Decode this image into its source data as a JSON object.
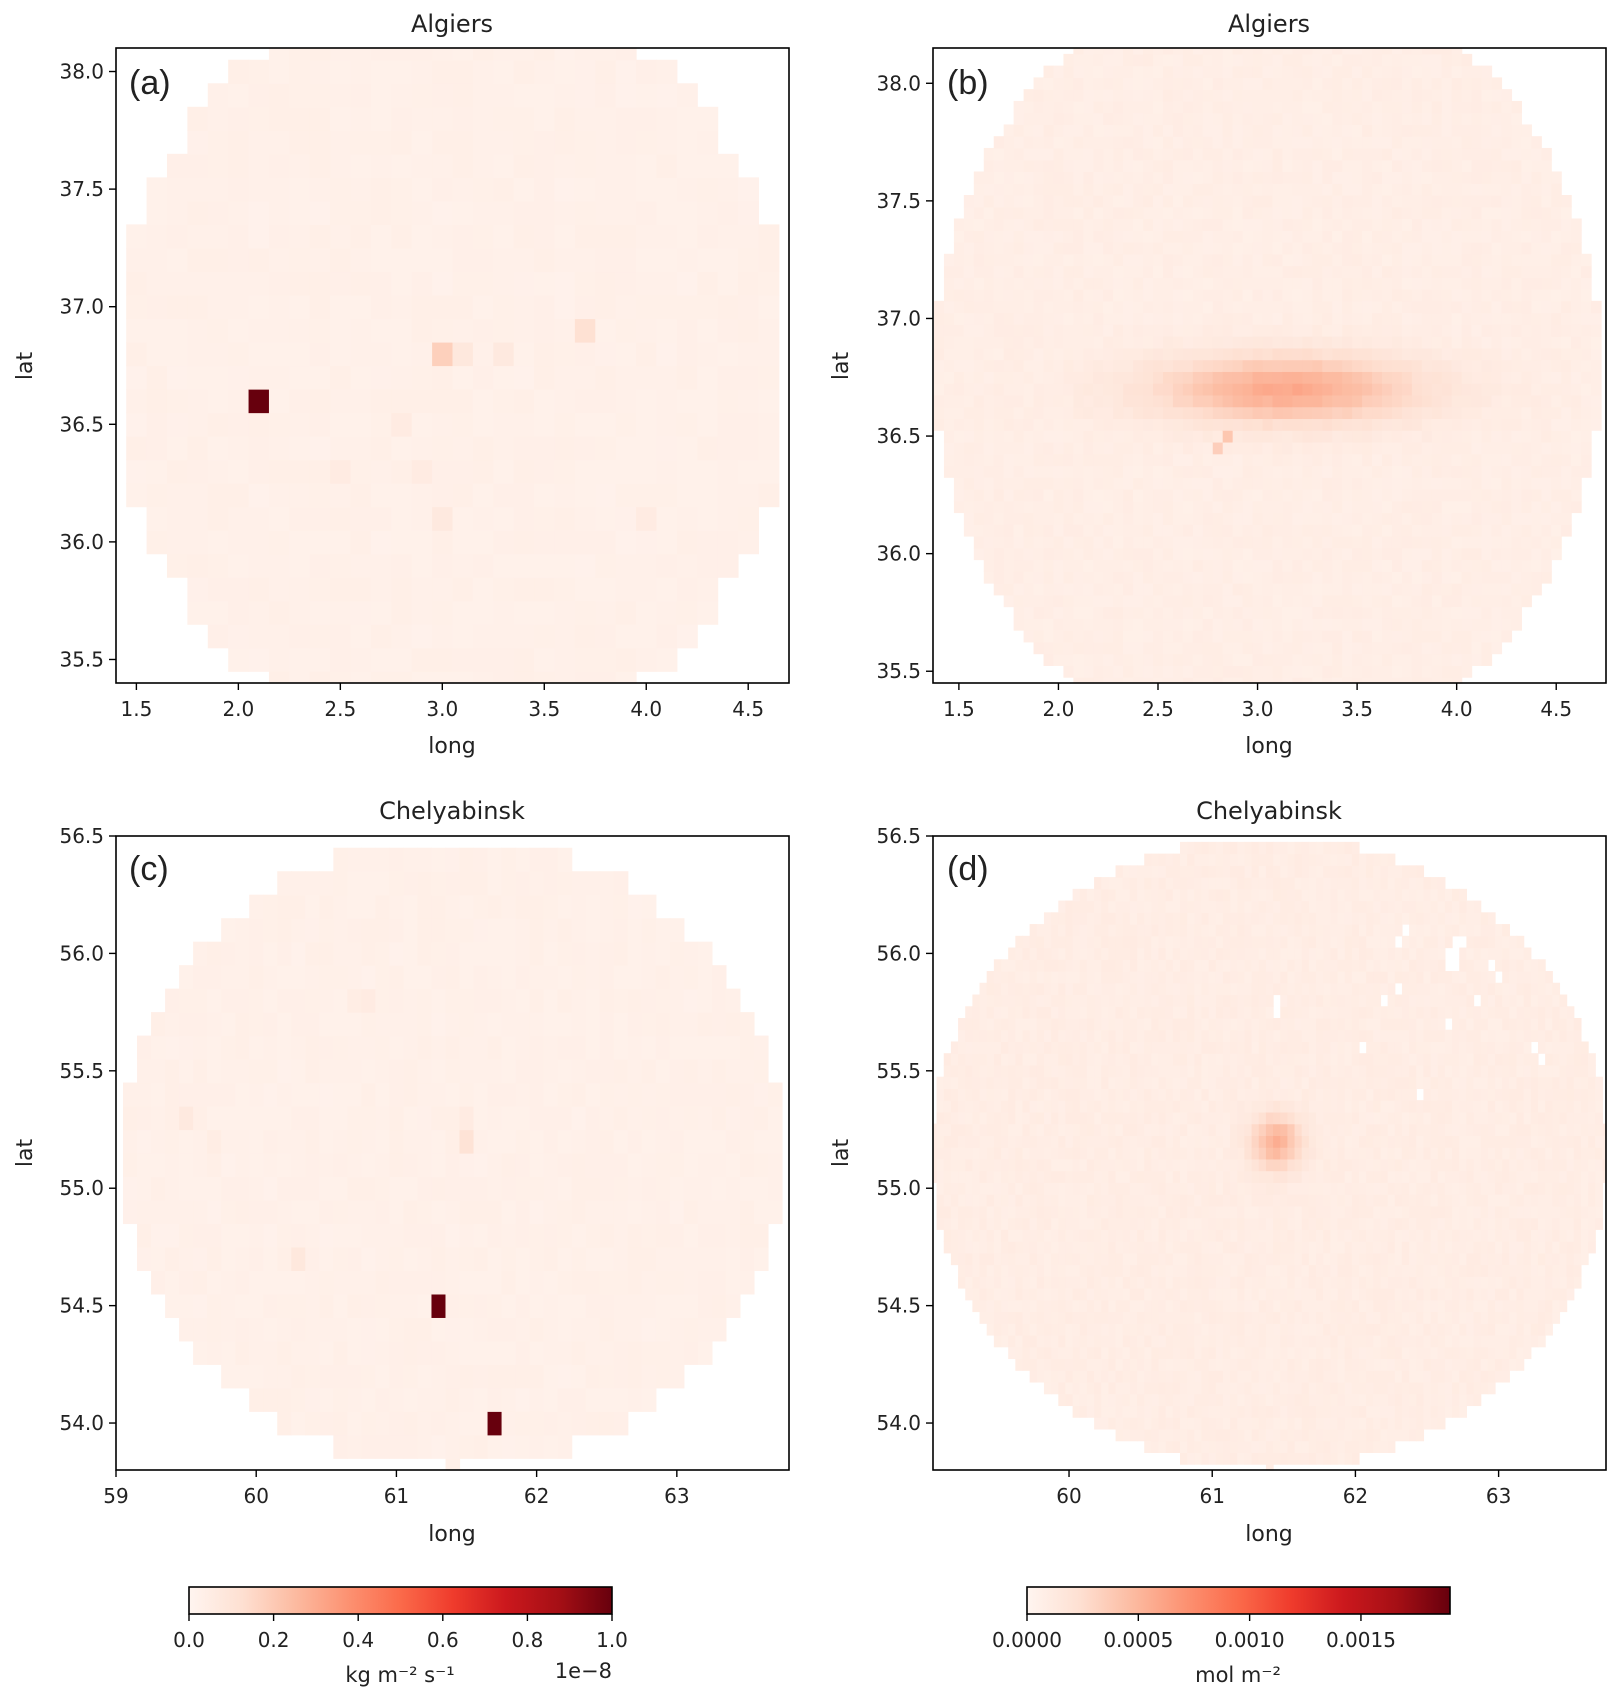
{
  "chart_data": [
    {
      "id": "a",
      "type": "heatmap",
      "panel_label": "(a)",
      "title": "Algiers",
      "xlabel": "long",
      "ylabel": "lat",
      "xlim": [
        1.4,
        4.7
      ],
      "ylim": [
        35.4,
        38.1
      ],
      "xticks": [
        "1.5",
        "2.0",
        "2.5",
        "3.0",
        "3.5",
        "4.0",
        "4.5"
      ],
      "xtick_values": [
        1.5,
        2.0,
        2.5,
        3.0,
        3.5,
        4.0,
        4.5
      ],
      "yticks": [
        "35.5",
        "36.0",
        "36.5",
        "37.0",
        "37.5",
        "38.0"
      ],
      "ytick_values": [
        35.5,
        36.0,
        36.5,
        37.0,
        37.5,
        38.0
      ],
      "colormap": "Reds",
      "vmin": 0,
      "vmax": 1e-08,
      "circle": {
        "center": [
          3.05,
          36.75
        ],
        "radius_deg": 1.65
      },
      "cell_size": [
        0.1,
        0.1
      ],
      "background_value": 3e-10,
      "hotspots": [
        {
          "x": 2.15,
          "y": 36.65,
          "value": 1e-08
        },
        {
          "x": 3.05,
          "y": 36.75,
          "value": 1.8e-09
        },
        {
          "x": 3.65,
          "y": 36.85,
          "value": 1.2e-09
        },
        {
          "x": 2.95,
          "y": 36.15,
          "value": 7e-10
        },
        {
          "x": 2.55,
          "y": 36.25,
          "value": 6e-10
        },
        {
          "x": 2.85,
          "y": 36.25,
          "value": 6e-10
        },
        {
          "x": 3.25,
          "y": 36.75,
          "value": 7e-10
        },
        {
          "x": 3.15,
          "y": 36.75,
          "value": 8e-10
        },
        {
          "x": 3.95,
          "y": 36.15,
          "value": 6e-10
        },
        {
          "x": 2.75,
          "y": 36.55,
          "value": 6e-10
        }
      ]
    },
    {
      "id": "b",
      "type": "heatmap",
      "panel_label": "(b)",
      "title": "Algiers",
      "xlabel": "long",
      "ylabel": "lat",
      "xlim": [
        1.37,
        4.75
      ],
      "ylim": [
        35.45,
        38.15
      ],
      "xticks": [
        "1.5",
        "2.0",
        "2.5",
        "3.0",
        "3.5",
        "4.0",
        "4.5"
      ],
      "xtick_values": [
        1.5,
        2.0,
        2.5,
        3.0,
        3.5,
        4.0,
        4.5
      ],
      "yticks": [
        "35.5",
        "36.0",
        "36.5",
        "37.0",
        "37.5",
        "38.0"
      ],
      "ytick_values": [
        35.5,
        36.0,
        36.5,
        37.0,
        37.5,
        38.0
      ],
      "colormap": "Reds",
      "vmin": 0,
      "vmax": 0.0019,
      "circle": {
        "center": [
          3.05,
          36.8
        ],
        "radius_deg": 1.67
      },
      "cell_size": [
        0.05,
        0.05
      ],
      "background_value": 8e-05,
      "plume": {
        "center": [
          3.15,
          36.7
        ],
        "peak": 0.0005,
        "sx": 0.45,
        "sy": 0.1
      },
      "hotspots": [
        {
          "x": 3.2,
          "y": 36.7,
          "value": 0.0006
        },
        {
          "x": 2.85,
          "y": 36.5,
          "value": 0.0004
        },
        {
          "x": 2.8,
          "y": 36.45,
          "value": 0.00035
        }
      ]
    },
    {
      "id": "c",
      "type": "heatmap",
      "panel_label": "(c)",
      "title": "Chelyabinsk",
      "xlabel": "long",
      "ylabel": "lat",
      "xlim": [
        59.0,
        63.8
      ],
      "ylim": [
        53.8,
        56.5
      ],
      "xticks": [
        "59",
        "60",
        "61",
        "62",
        "63"
      ],
      "xtick_values": [
        59,
        60,
        61,
        62,
        63
      ],
      "yticks": [
        "54.0",
        "54.5",
        "55.0",
        "55.5",
        "56.0",
        "56.5"
      ],
      "ytick_values": [
        54.0,
        54.5,
        55.0,
        55.5,
        56.0,
        56.5
      ],
      "colormap": "Reds",
      "vmin": 0,
      "vmax": 1e-08,
      "circle": {
        "center": [
          61.4,
          55.15
        ],
        "radius_deg": 1.35
      },
      "cell_size": [
        0.1,
        0.1
      ],
      "cell_aspect": 0.5714,
      "background_value": 3e-10,
      "hotspots": [
        {
          "x": 61.25,
          "y": 54.45,
          "value": 1e-08
        },
        {
          "x": 61.65,
          "y": 54.05,
          "value": 1e-08
        },
        {
          "x": 61.45,
          "y": 55.15,
          "value": 1.1e-09
        },
        {
          "x": 61.45,
          "y": 55.25,
          "value": 6e-10
        },
        {
          "x": 59.55,
          "y": 55.25,
          "value": 7e-10
        },
        {
          "x": 60.25,
          "y": 54.65,
          "value": 8e-10
        },
        {
          "x": 60.75,
          "y": 55.75,
          "value": 6e-10
        },
        {
          "x": 59.65,
          "y": 55.15,
          "value": 5e-10
        },
        {
          "x": 60.65,
          "y": 55.75,
          "value": 5e-10
        }
      ]
    },
    {
      "id": "d",
      "type": "heatmap",
      "panel_label": "(d)",
      "title": "Chelyabinsk",
      "xlabel": "long",
      "ylabel": "lat",
      "xlim": [
        59.05,
        63.75
      ],
      "ylim": [
        53.8,
        56.5
      ],
      "xticks": [
        "60",
        "61",
        "62",
        "63"
      ],
      "xtick_values": [
        60,
        61,
        62,
        63
      ],
      "yticks": [
        "54.0",
        "54.5",
        "55.0",
        "55.5",
        "56.0",
        "56.5"
      ],
      "ytick_values": [
        54.0,
        54.5,
        55.0,
        55.5,
        56.0,
        56.5
      ],
      "colormap": "Reds",
      "vmin": 0,
      "vmax": 0.0019,
      "circle": {
        "center": [
          61.4,
          55.15
        ],
        "radius_deg": 1.35
      },
      "cell_size": [
        0.05,
        0.05
      ],
      "cell_aspect": 0.5714,
      "background_value": 9e-05,
      "plume": {
        "center": [
          61.45,
          55.2
        ],
        "peak": 0.00045,
        "sx": 0.12,
        "sy": 0.08
      },
      "missing_cells": [
        [
          62.65,
          55.95
        ],
        [
          62.7,
          55.95
        ],
        [
          62.65,
          56.0
        ],
        [
          62.7,
          56.05
        ],
        [
          62.75,
          56.05
        ],
        [
          62.7,
          56.0
        ],
        [
          62.3,
          56.05
        ],
        [
          62.35,
          56.1
        ],
        [
          62.95,
          55.95
        ],
        [
          63.0,
          55.9
        ],
        [
          62.85,
          55.8
        ],
        [
          62.2,
          55.8
        ],
        [
          61.45,
          55.75
        ],
        [
          61.45,
          55.8
        ],
        [
          62.05,
          55.6
        ],
        [
          62.3,
          55.85
        ],
        [
          63.25,
          55.6
        ],
        [
          63.3,
          55.55
        ],
        [
          62.45,
          55.4
        ],
        [
          62.65,
          55.7
        ]
      ]
    }
  ],
  "colorbars": [
    {
      "id": "cbar-left",
      "colormap": "Reds",
      "ticks": [
        "0.0",
        "0.2",
        "0.4",
        "0.6",
        "0.8",
        "1.0"
      ],
      "tick_values": [
        0,
        0.2,
        0.4,
        0.6,
        0.8,
        1.0
      ],
      "range": [
        0,
        1.0
      ],
      "label": "kg m⁻² s⁻¹",
      "offset_text": "1e−8"
    },
    {
      "id": "cbar-right",
      "colormap": "Reds",
      "ticks": [
        "0.0000",
        "0.0005",
        "0.0010",
        "0.0015"
      ],
      "tick_values": [
        0,
        0.0005,
        0.001,
        0.0015
      ],
      "range": [
        0,
        0.0019
      ],
      "label": "mol m⁻²",
      "offset_text": ""
    }
  ],
  "colors": {
    "reds": [
      "#fff5f0",
      "#fee0d2",
      "#fcbba1",
      "#fc9272",
      "#fb6a4a",
      "#ef3b2c",
      "#cb181d",
      "#a50f15",
      "#67000d"
    ]
  }
}
